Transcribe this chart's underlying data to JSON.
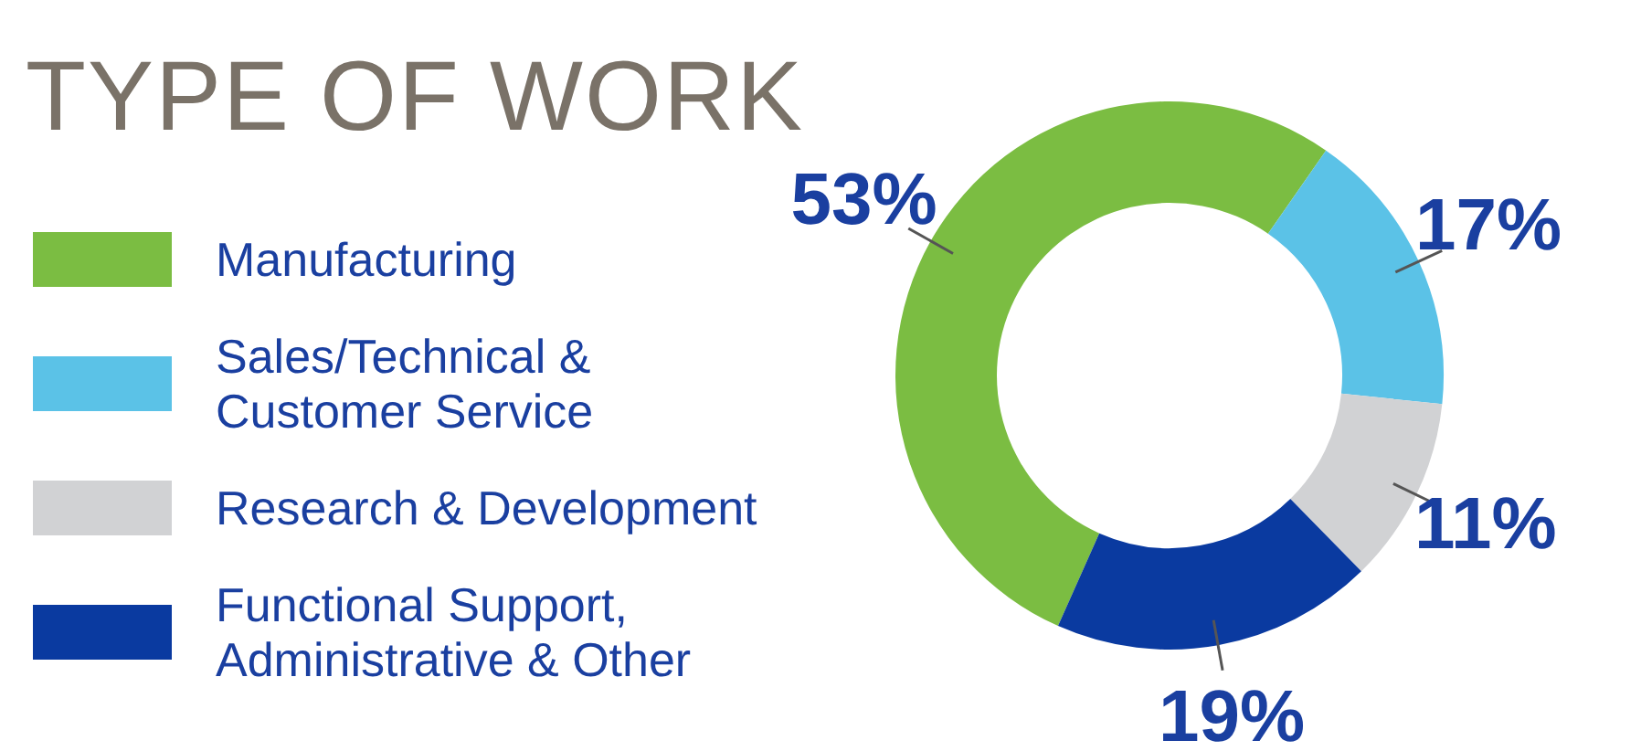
{
  "chart_data": {
    "type": "donut",
    "title": "TYPE OF WORK",
    "categories": [
      "Manufacturing",
      "Sales/Technical & Customer Service",
      "Research & Development",
      "Functional Support, Administrative & Other"
    ],
    "values": [
      53,
      17,
      11,
      19
    ],
    "colors": [
      "#7bbd42",
      "#5bc2e7",
      "#d1d2d4",
      "#0a3aa0"
    ],
    "value_labels": [
      "53%",
      "17%",
      "11%",
      "19%"
    ],
    "legend": "left"
  }
}
